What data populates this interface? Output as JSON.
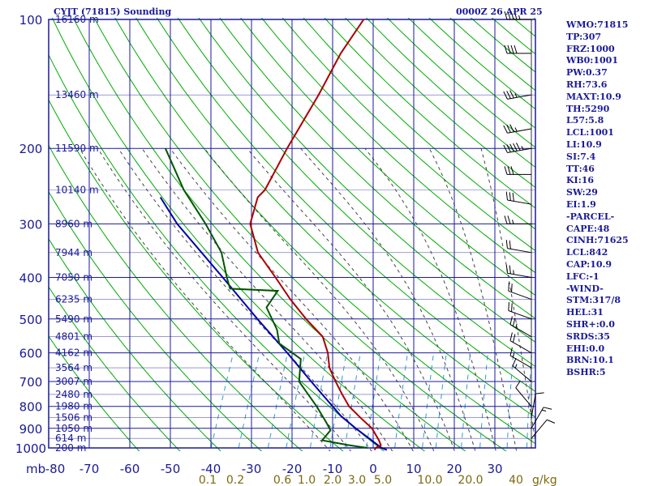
{
  "header": {
    "title": "CYJT (71815) Sounding",
    "time": "0000Z 26 APR 25"
  },
  "indices": [
    "WMO:71815",
    "TP:307",
    "FRZ:1000",
    "WB0:1001",
    "PW:0.37",
    "RH:73.6",
    "MAXT:10.9",
    "TH:5290",
    "L57:5.8",
    "LCL:1001",
    "LI:10.9",
    "SI:7.4",
    "TT:46",
    "KI:16",
    "SW:29",
    "EI:1.9",
    "-PARCEL-",
    "CAPE:48",
    "CINH:71625",
    "LCL:842",
    "CAP:10.9",
    "LFC:-1",
    "-WIND-",
    "STM:317/8",
    "HEL:31",
    "SHR+:0.0",
    "SRDS:35",
    "EHI:0.0",
    "BRN:10.1",
    "BSHR:5"
  ],
  "colors": {
    "frame": "#1a1a99",
    "temperature": "#aa0000",
    "dewpoint": "#005500",
    "parcel": "#0000aa",
    "dry_adiabat": "#00aa00",
    "moist_adiabat": "#444444",
    "mixing_ratio": "#3399cc",
    "text_blue": "#1a1a99",
    "text_olive": "#7a6a10"
  },
  "chart_data": {
    "type": "skew-t log-p sounding",
    "y_axis": {
      "scale": "log pressure",
      "unit_label": "mb",
      "ticks": [
        100,
        200,
        300,
        400,
        500,
        600,
        700,
        800,
        900,
        1000
      ]
    },
    "x_axis": {
      "quantity": "temperature",
      "unit": "°C",
      "ticks": [
        -80,
        -70,
        -60,
        -50,
        -40,
        -30,
        -20,
        -10,
        0,
        10,
        20,
        30
      ]
    },
    "mixing_ratio_axis": {
      "unit_label": "g/kg",
      "ticks": [
        "0.1",
        "0.2",
        "0.6",
        "1.0",
        "2.0",
        "3.0",
        "5.0",
        "10.0",
        "20.0",
        "40"
      ]
    },
    "height_labels": [
      {
        "p": 100,
        "label": "16160 m"
      },
      {
        "p": 150,
        "label": "13460 m"
      },
      {
        "p": 200,
        "label": "11590 m"
      },
      {
        "p": 250,
        "label": "10140 m"
      },
      {
        "p": 300,
        "label": "8960 m"
      },
      {
        "p": 350,
        "label": "7944 m"
      },
      {
        "p": 400,
        "label": "7050 m"
      },
      {
        "p": 450,
        "label": "6235 m"
      },
      {
        "p": 500,
        "label": "5490 m"
      },
      {
        "p": 550,
        "label": "4801 m"
      },
      {
        "p": 600,
        "label": "4162 m"
      },
      {
        "p": 650,
        "label": "3564 m"
      },
      {
        "p": 700,
        "label": "3007 m"
      },
      {
        "p": 750,
        "label": "2480 m"
      },
      {
        "p": 800,
        "label": "1980 m"
      },
      {
        "p": 850,
        "label": "1506 m"
      },
      {
        "p": 900,
        "label": "1050 m"
      },
      {
        "p": 950,
        "label": "614 m"
      },
      {
        "p": 1000,
        "label": "200 m"
      }
    ],
    "temperature_profile": [
      {
        "p": 1011,
        "t": -1
      },
      {
        "p": 1000,
        "t": -1
      },
      {
        "p": 985,
        "t": 0
      },
      {
        "p": 960,
        "t": -1
      },
      {
        "p": 900,
        "t": -4
      },
      {
        "p": 850,
        "t": -8
      },
      {
        "p": 800,
        "t": -12
      },
      {
        "p": 750,
        "t": -15
      },
      {
        "p": 700,
        "t": -18
      },
      {
        "p": 650,
        "t": -21
      },
      {
        "p": 600,
        "t": -23
      },
      {
        "p": 550,
        "t": -26
      },
      {
        "p": 500,
        "t": -32
      },
      {
        "p": 450,
        "t": -38
      },
      {
        "p": 400,
        "t": -44
      },
      {
        "p": 350,
        "t": -51
      },
      {
        "p": 300,
        "t": -56
      },
      {
        "p": 260,
        "t": -57
      },
      {
        "p": 250,
        "t": -56
      },
      {
        "p": 200,
        "t": -55
      },
      {
        "p": 150,
        "t": -53
      },
      {
        "p": 120,
        "t": -52
      },
      {
        "p": 100,
        "t": -50
      }
    ],
    "dewpoint_profile": [
      {
        "p": 1000,
        "t": -3
      },
      {
        "p": 985,
        "t": -8
      },
      {
        "p": 960,
        "t": -15
      },
      {
        "p": 910,
        "t": -14
      },
      {
        "p": 870,
        "t": -16
      },
      {
        "p": 800,
        "t": -20
      },
      {
        "p": 700,
        "t": -27
      },
      {
        "p": 620,
        "t": -29
      },
      {
        "p": 570,
        "t": -36
      },
      {
        "p": 530,
        "t": -38
      },
      {
        "p": 470,
        "t": -43
      },
      {
        "p": 430,
        "t": -42
      },
      {
        "p": 425,
        "t": -54
      },
      {
        "p": 400,
        "t": -56
      },
      {
        "p": 350,
        "t": -60
      },
      {
        "p": 300,
        "t": -67
      },
      {
        "p": 250,
        "t": -76
      },
      {
        "p": 200,
        "t": -85
      }
    ],
    "parcel_profile": [
      {
        "p": 1011,
        "t": 2
      },
      {
        "p": 1000,
        "t": 0.5
      },
      {
        "p": 900,
        "t": -8
      },
      {
        "p": 842,
        "t": -13
      },
      {
        "p": 700,
        "t": -24
      },
      {
        "p": 600,
        "t": -33
      },
      {
        "p": 500,
        "t": -44
      },
      {
        "p": 400,
        "t": -57
      },
      {
        "p": 300,
        "t": -74
      },
      {
        "p": 260,
        "t": -81
      }
    ],
    "wind_barbs": [
      {
        "p": 100,
        "dir": 270,
        "kt": 45
      },
      {
        "p": 120,
        "dir": 270,
        "kt": 40
      },
      {
        "p": 150,
        "dir": 260,
        "kt": 35
      },
      {
        "p": 180,
        "dir": 260,
        "kt": 35
      },
      {
        "p": 200,
        "dir": 260,
        "kt": 55
      },
      {
        "p": 230,
        "dir": 270,
        "kt": 30
      },
      {
        "p": 270,
        "dir": 280,
        "kt": 30
      },
      {
        "p": 300,
        "dir": 270,
        "kt": 25
      },
      {
        "p": 350,
        "dir": 280,
        "kt": 20
      },
      {
        "p": 400,
        "dir": 280,
        "kt": 25
      },
      {
        "p": 450,
        "dir": 290,
        "kt": 20
      },
      {
        "p": 500,
        "dir": 290,
        "kt": 20
      },
      {
        "p": 550,
        "dir": 300,
        "kt": 25
      },
      {
        "p": 600,
        "dir": 300,
        "kt": 20
      },
      {
        "p": 650,
        "dir": 300,
        "kt": 15
      },
      {
        "p": 700,
        "dir": 310,
        "kt": 15
      },
      {
        "p": 800,
        "dir": 320,
        "kt": 10
      },
      {
        "p": 850,
        "dir": 10,
        "kt": 10
      },
      {
        "p": 900,
        "dir": 30,
        "kt": 15
      },
      {
        "p": 950,
        "dir": 40,
        "kt": 10
      }
    ]
  }
}
